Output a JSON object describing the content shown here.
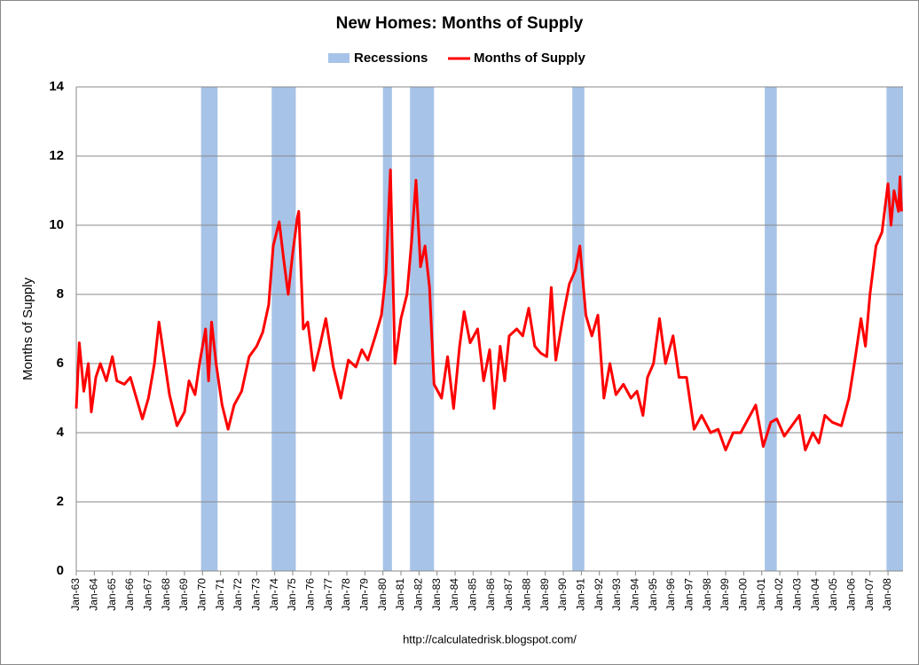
{
  "chart_data": {
    "type": "line",
    "title": "New Homes: Months of Supply",
    "y_label": "Months of Supply",
    "source": "http://calculatedrisk.blogspot.com/",
    "xlim": [
      "1963-01",
      "2008-11"
    ],
    "ylim": [
      0,
      14
    ],
    "yticks": [
      0,
      2,
      4,
      6,
      8,
      10,
      12,
      14
    ],
    "grid": true,
    "legend": "top",
    "xticks": [
      {
        "value": "1963-01",
        "label": "Jan-63"
      },
      {
        "value": "1964-01",
        "label": "Jan-64"
      },
      {
        "value": "1965-01",
        "label": "Jan-65"
      },
      {
        "value": "1966-01",
        "label": "Jan-66"
      },
      {
        "value": "1967-01",
        "label": "Jan-67"
      },
      {
        "value": "1968-01",
        "label": "Jan-68"
      },
      {
        "value": "1969-01",
        "label": "Jan-69"
      },
      {
        "value": "1970-01",
        "label": "Jan-70"
      },
      {
        "value": "1971-01",
        "label": "Jan-71"
      },
      {
        "value": "1972-01",
        "label": "Jan-72"
      },
      {
        "value": "1973-01",
        "label": "Jan-73"
      },
      {
        "value": "1974-01",
        "label": "Jan-74"
      },
      {
        "value": "1975-01",
        "label": "Jan-75"
      },
      {
        "value": "1976-01",
        "label": "Jan-76"
      },
      {
        "value": "1977-01",
        "label": "Jan-77"
      },
      {
        "value": "1978-01",
        "label": "Jan-78"
      },
      {
        "value": "1979-01",
        "label": "Jan-79"
      },
      {
        "value": "1980-01",
        "label": "Jan-80"
      },
      {
        "value": "1981-01",
        "label": "Jan-81"
      },
      {
        "value": "1982-01",
        "label": "Jan-82"
      },
      {
        "value": "1983-01",
        "label": "Jan-83"
      },
      {
        "value": "1984-01",
        "label": "Jan-84"
      },
      {
        "value": "1985-01",
        "label": "Jan-85"
      },
      {
        "value": "1986-01",
        "label": "Jan-86"
      },
      {
        "value": "1987-01",
        "label": "Jan-87"
      },
      {
        "value": "1988-01",
        "label": "Jan-88"
      },
      {
        "value": "1989-01",
        "label": "Jan-89"
      },
      {
        "value": "1990-01",
        "label": "Jan-90"
      },
      {
        "value": "1991-01",
        "label": "Jan-91"
      },
      {
        "value": "1992-01",
        "label": "Jan-92"
      },
      {
        "value": "1993-01",
        "label": "Jan-93"
      },
      {
        "value": "1994-01",
        "label": "Jan-94"
      },
      {
        "value": "1995-01",
        "label": "Jan-95"
      },
      {
        "value": "1996-01",
        "label": "Jan-96"
      },
      {
        "value": "1997-01",
        "label": "Jan-97"
      },
      {
        "value": "1998-01",
        "label": "Jan-98"
      },
      {
        "value": "1999-01",
        "label": "Jan-99"
      },
      {
        "value": "2000-01",
        "label": "Jan-00"
      },
      {
        "value": "2001-01",
        "label": "Jan-01"
      },
      {
        "value": "2002-01",
        "label": "Jan-02"
      },
      {
        "value": "2003-01",
        "label": "Jan-03"
      },
      {
        "value": "2004-01",
        "label": "Jan-04"
      },
      {
        "value": "2005-01",
        "label": "Jan-05"
      },
      {
        "value": "2006-01",
        "label": "Jan-06"
      },
      {
        "value": "2007-01",
        "label": "Jan-07"
      },
      {
        "value": "2008-01",
        "label": "Jan-08"
      }
    ],
    "recessions": {
      "name": "Recessions",
      "color": "#a7c3e8",
      "periods": [
        [
          "1969-12",
          "1970-11"
        ],
        [
          "1973-11",
          "1975-03"
        ],
        [
          "1980-01",
          "1980-07"
        ],
        [
          "1981-07",
          "1982-11"
        ],
        [
          "1990-07",
          "1991-03"
        ],
        [
          "2001-03",
          "2001-11"
        ],
        [
          "2007-12",
          "2008-11"
        ]
      ]
    },
    "x": [
      "1963-01",
      "1963-03",
      "1963-06",
      "1963-09",
      "1963-11",
      "1964-02",
      "1964-05",
      "1964-09",
      "1965-01",
      "1965-04",
      "1965-09",
      "1966-01",
      "1966-05",
      "1966-09",
      "1967-01",
      "1967-05",
      "1967-08",
      "1967-11",
      "1968-03",
      "1968-08",
      "1969-01",
      "1969-04",
      "1969-08",
      "1969-11",
      "1970-03",
      "1970-05",
      "1970-07",
      "1970-10",
      "1971-02",
      "1971-06",
      "1971-10",
      "1972-03",
      "1972-08",
      "1973-01",
      "1973-05",
      "1973-09",
      "1973-12",
      "1974-04",
      "1974-07",
      "1974-10",
      "1975-01",
      "1975-04",
      "1975-05",
      "1975-08",
      "1975-11",
      "1976-03",
      "1976-07",
      "1976-11",
      "1977-04",
      "1977-09",
      "1978-02",
      "1978-07",
      "1978-11",
      "1979-03",
      "1979-08",
      "1979-12",
      "1980-03",
      "1980-06",
      "1980-09",
      "1981-01",
      "1981-05",
      "1981-08",
      "1981-11",
      "1982-02",
      "1982-05",
      "1982-08",
      "1982-11",
      "1983-04",
      "1983-08",
      "1983-12",
      "1984-04",
      "1984-07",
      "1984-11",
      "1985-04",
      "1985-08",
      "1985-12",
      "1986-03",
      "1986-07",
      "1986-10",
      "1987-01",
      "1987-06",
      "1987-10",
      "1988-02",
      "1988-06",
      "1988-10",
      "1989-02",
      "1989-05",
      "1989-08",
      "1990-01",
      "1990-05",
      "1990-09",
      "1990-12",
      "1991-04",
      "1991-08",
      "1991-12",
      "1992-04",
      "1992-08",
      "1992-12",
      "1993-05",
      "1993-10",
      "1994-02",
      "1994-06",
      "1994-09",
      "1995-01",
      "1995-05",
      "1995-09",
      "1996-02",
      "1996-06",
      "1996-11",
      "1997-04",
      "1997-09",
      "1998-03",
      "1998-08",
      "1999-01",
      "1999-06",
      "1999-11",
      "2000-04",
      "2000-09",
      "2001-02",
      "2001-07",
      "2001-11",
      "2002-04",
      "2002-09",
      "2003-02",
      "2003-06",
      "2003-11",
      "2004-03",
      "2004-07",
      "2004-12",
      "2005-06",
      "2005-11",
      "2006-03",
      "2006-07",
      "2006-10",
      "2007-01",
      "2007-05",
      "2007-09",
      "2008-01",
      "2008-03",
      "2008-05",
      "2008-08",
      "2008-09",
      "2008-10"
    ],
    "series": [
      {
        "name": "Months of Supply",
        "color": "#ff0000",
        "values": [
          4.7,
          6.6,
          5.2,
          6.0,
          4.6,
          5.6,
          6.0,
          5.5,
          6.2,
          5.5,
          5.4,
          5.6,
          5.0,
          4.4,
          5.0,
          6.0,
          7.2,
          6.3,
          5.1,
          4.2,
          4.6,
          5.5,
          5.1,
          6.0,
          7.0,
          5.5,
          7.2,
          6.0,
          4.8,
          4.1,
          4.8,
          5.2,
          6.2,
          6.5,
          6.9,
          7.7,
          9.4,
          10.1,
          9.0,
          8.0,
          9.2,
          10.2,
          10.4,
          7.0,
          7.2,
          5.8,
          6.5,
          7.3,
          5.9,
          5.0,
          6.1,
          5.9,
          6.4,
          6.1,
          6.8,
          7.4,
          8.6,
          11.6,
          6.0,
          7.3,
          8.0,
          9.5,
          11.3,
          8.8,
          9.4,
          8.2,
          5.4,
          5.0,
          6.2,
          4.7,
          6.5,
          7.5,
          6.6,
          7.0,
          5.5,
          6.4,
          4.7,
          6.5,
          5.5,
          6.8,
          7.0,
          6.8,
          7.6,
          6.5,
          6.3,
          6.2,
          8.2,
          6.1,
          7.4,
          8.3,
          8.7,
          9.4,
          7.4,
          6.8,
          7.4,
          5.0,
          6.0,
          5.1,
          5.4,
          5.0,
          5.2,
          4.5,
          5.6,
          6.0,
          7.3,
          6.0,
          6.8,
          5.6,
          5.6,
          4.1,
          4.5,
          4.0,
          4.1,
          3.5,
          4.0,
          4.0,
          4.4,
          4.8,
          3.6,
          4.3,
          4.4,
          3.9,
          4.2,
          4.5,
          3.5,
          4.0,
          3.7,
          4.5,
          4.3,
          4.2,
          5.0,
          6.1,
          7.3,
          6.5,
          8.0,
          9.4,
          9.8,
          11.2,
          10.0,
          11.0,
          10.4,
          11.4,
          10.4
        ]
      }
    ]
  }
}
